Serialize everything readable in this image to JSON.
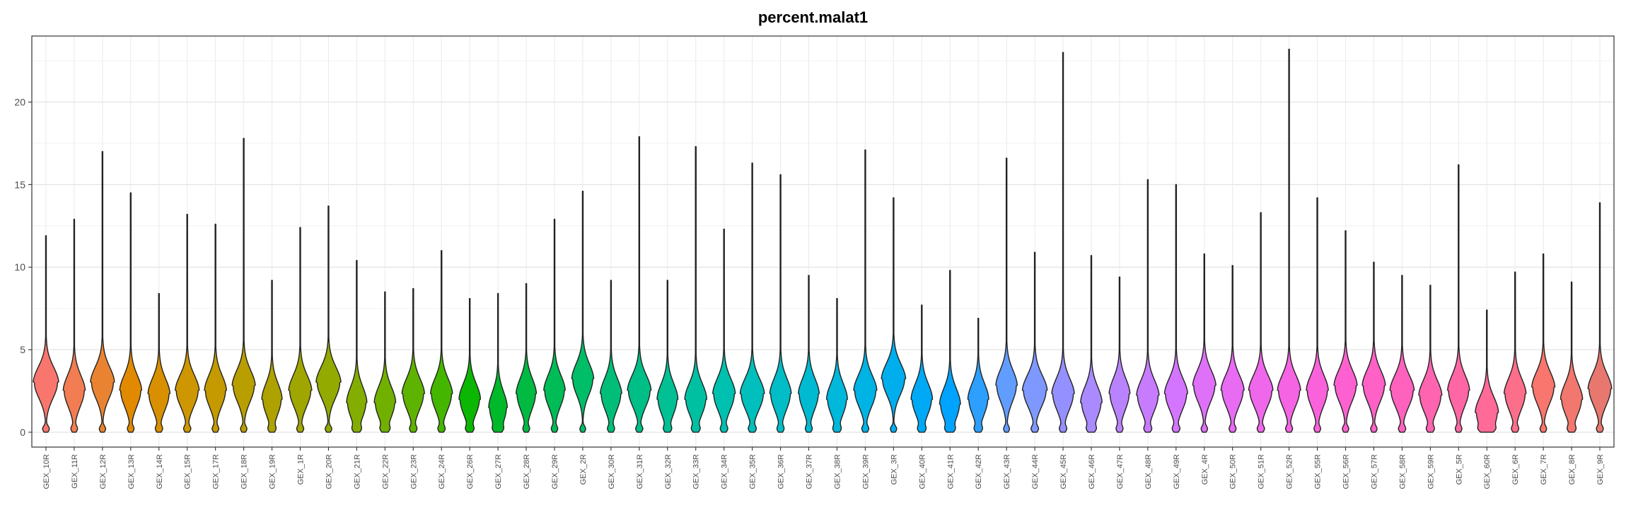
{
  "chart_data": {
    "type": "violin",
    "title": "percent.malat1",
    "xlabel": "",
    "ylabel": "",
    "ylim": [
      -0.9,
      24
    ],
    "yticks": [
      0,
      5,
      10,
      15,
      20
    ],
    "grid": true,
    "legend": "none",
    "categories": [
      "GEX_10R",
      "GEX_11R",
      "GEX_12R",
      "GEX_13R",
      "GEX_14R",
      "GEX_15R",
      "GEX_17R",
      "GEX_18R",
      "GEX_19R",
      "GEX_1R",
      "GEX_20R",
      "GEX_21R",
      "GEX_22R",
      "GEX_23R",
      "GEX_24R",
      "GEX_26R",
      "GEX_27R",
      "GEX_28R",
      "GEX_29R",
      "GEX_2R",
      "GEX_30R",
      "GEX_31R",
      "GEX_32R",
      "GEX_33R",
      "GEX_34R",
      "GEX_35R",
      "GEX_36R",
      "GEX_37R",
      "GEX_38R",
      "GEX_39R",
      "GEX_3R",
      "GEX_40R",
      "GEX_41R",
      "GEX_42R",
      "GEX_43R",
      "GEX_44R",
      "GEX_45R",
      "GEX_46R",
      "GEX_47R",
      "GEX_48R",
      "GEX_49R",
      "GEX_4R",
      "GEX_50R",
      "GEX_51R",
      "GEX_52R",
      "GEX_55R",
      "GEX_56R",
      "GEX_57R",
      "GEX_58R",
      "GEX_59R",
      "GEX_5R",
      "GEX_60R",
      "GEX_6R",
      "GEX_7R",
      "GEX_8R",
      "GEX_9R"
    ],
    "max": [
      11.9,
      12.9,
      17.0,
      14.5,
      8.4,
      13.2,
      12.6,
      17.8,
      9.2,
      12.4,
      13.7,
      10.4,
      8.5,
      8.7,
      11.0,
      8.1,
      8.4,
      9.0,
      12.9,
      14.6,
      9.2,
      17.9,
      9.2,
      17.3,
      12.3,
      16.3,
      15.6,
      9.5,
      8.1,
      17.1,
      14.2,
      7.7,
      9.8,
      6.9,
      16.6,
      10.9,
      23.0,
      10.7,
      9.4,
      15.3,
      15.0,
      10.8,
      10.1,
      13.3,
      23.2,
      14.2,
      12.2,
      10.3,
      9.5,
      8.9,
      16.2,
      7.4,
      9.7,
      10.8,
      9.1,
      13.9
    ],
    "median": [
      3.0,
      2.5,
      3.0,
      2.5,
      2.3,
      2.5,
      2.5,
      2.8,
      2.0,
      2.5,
      3.0,
      1.8,
      1.8,
      2.3,
      2.3,
      2.0,
      1.5,
      2.3,
      2.5,
      3.2,
      2.3,
      2.5,
      2.0,
      2.0,
      2.3,
      2.3,
      2.3,
      2.3,
      2.0,
      2.5,
      3.2,
      2.0,
      1.7,
      2.0,
      2.8,
      2.5,
      2.3,
      1.8,
      2.3,
      2.2,
      2.3,
      2.8,
      2.5,
      2.5,
      2.5,
      2.5,
      2.8,
      2.8,
      2.5,
      2.2,
      2.5,
      1.2,
      2.3,
      2.7,
      2.0,
      2.6
    ],
    "width": [
      0.9,
      0.78,
      0.85,
      0.78,
      0.78,
      0.85,
      0.78,
      0.82,
      0.72,
      0.82,
      0.88,
      0.72,
      0.76,
      0.8,
      0.78,
      0.76,
      0.66,
      0.72,
      0.76,
      0.78,
      0.76,
      0.84,
      0.74,
      0.78,
      0.8,
      0.86,
      0.76,
      0.74,
      0.74,
      0.82,
      0.86,
      0.76,
      0.74,
      0.74,
      0.76,
      0.88,
      0.8,
      0.76,
      0.74,
      0.8,
      0.82,
      0.82,
      0.82,
      0.86,
      0.82,
      0.78,
      0.82,
      0.82,
      0.86,
      0.82,
      0.78,
      0.82,
      0.78,
      0.82,
      0.78,
      0.84
    ],
    "colors": [
      "#F8766D",
      "#F27D52",
      "#EA8331",
      "#E18A00",
      "#D89000",
      "#CE9600",
      "#C49A00",
      "#B99E00",
      "#ADA200",
      "#A0A600",
      "#93AA00",
      "#83AD00",
      "#72B000",
      "#5EB300",
      "#44B600",
      "#0BB702",
      "#00B92A",
      "#00BA42",
      "#00BC56",
      "#00BD67",
      "#00BE77",
      "#00BF86",
      "#00C094",
      "#00C0A2",
      "#00C1AF",
      "#00BFBC",
      "#00BDC7",
      "#00BAD2",
      "#00B7DC",
      "#00B3E5",
      "#00AEEE",
      "#00A9F6",
      "#00A4FE",
      "#2D9FFF",
      "#619CFF",
      "#7E98FF",
      "#9590FF",
      "#A98AFF",
      "#B983FF",
      "#C77CFF",
      "#D475FF",
      "#DF70F8",
      "#E76BF3",
      "#EF67EB",
      "#F564E3",
      "#FA62DB",
      "#FD61D1",
      "#FF61C6",
      "#FF62BC",
      "#FF64B0",
      "#FF67A4",
      "#FF6A98",
      "#FD6E8B",
      "#F8766D",
      "#F2776E",
      "#E8786F"
    ]
  }
}
